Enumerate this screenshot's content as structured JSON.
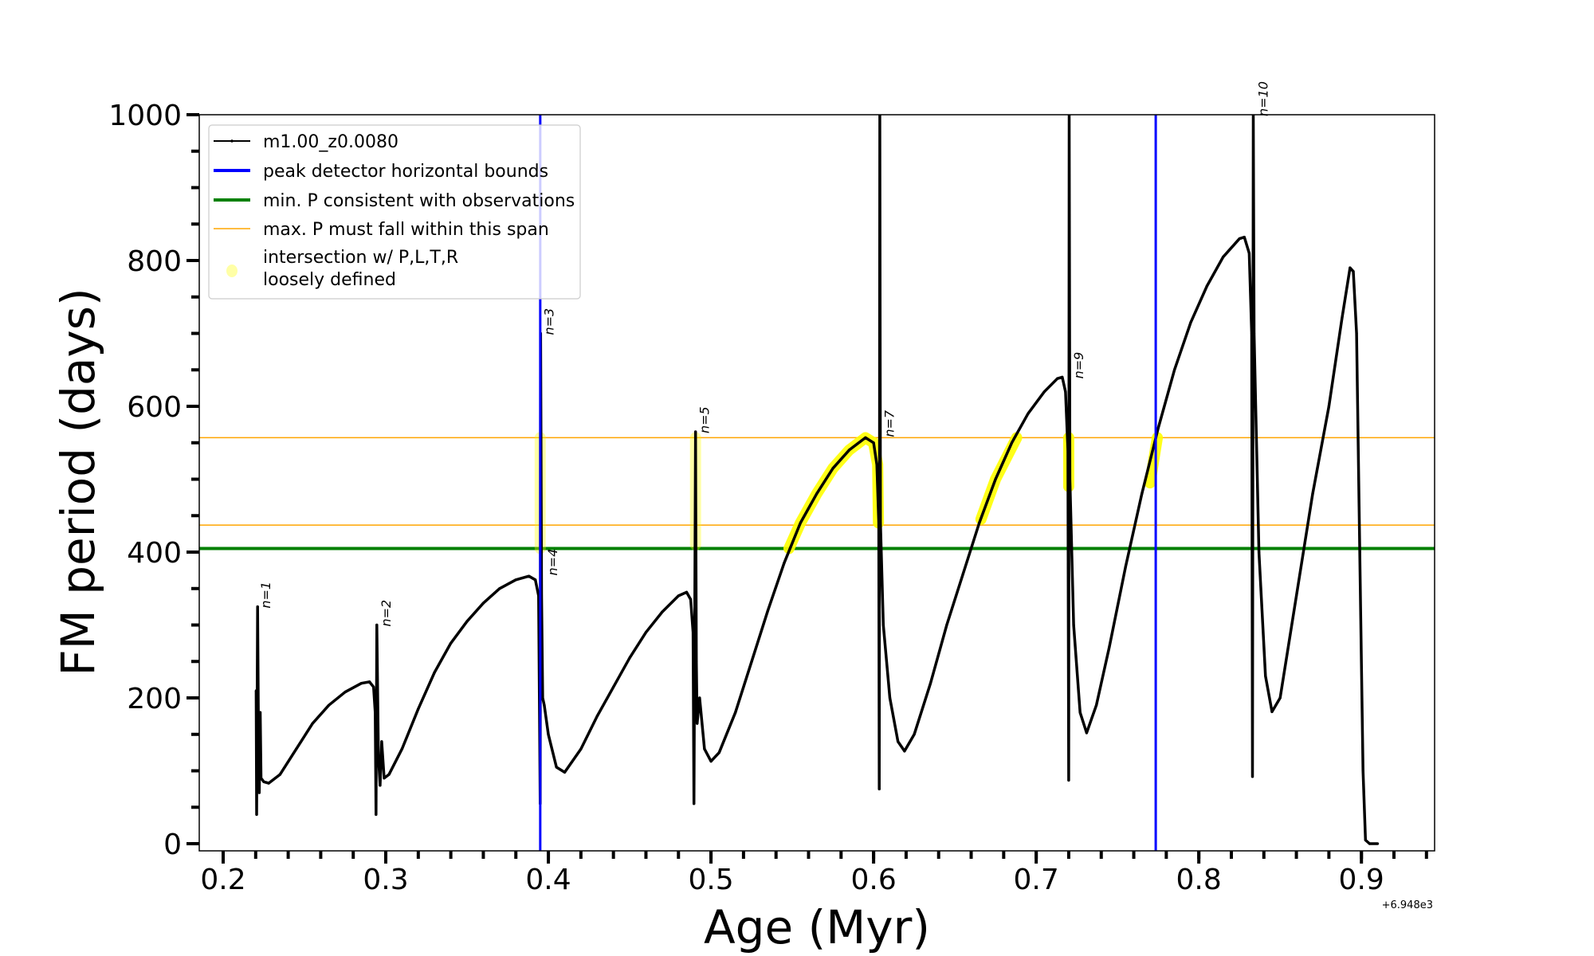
{
  "chart_data": {
    "type": "line",
    "xlabel": "Age (Myr)",
    "ylabel": "FM period (days)",
    "x_offset_label": "+6.948e3",
    "xlim": [
      0.1853,
      0.945
    ],
    "ylim": [
      -9.8,
      1000
    ],
    "xticks": [
      0.2,
      0.3,
      0.4,
      0.5,
      0.6,
      0.7,
      0.8,
      0.9
    ],
    "xtick_labels": [
      "0.2",
      "0.3",
      "0.4",
      "0.5",
      "0.6",
      "0.7",
      "0.8",
      "0.9"
    ],
    "x_minor_step": 0.02,
    "yticks": [
      0,
      200,
      400,
      600,
      800,
      1000
    ],
    "ytick_labels": [
      "0",
      "200",
      "400",
      "600",
      "800",
      "1000"
    ],
    "y_minor_step": 50,
    "grid": false,
    "legend_position": "top-left",
    "legend": [
      {
        "label": "m1.00_z0.0080",
        "color": "#000000",
        "kind": "line-marker"
      },
      {
        "label": "peak detector horizontal bounds",
        "color": "#0000ff",
        "kind": "thick-line"
      },
      {
        "label": "min. P consistent with observations",
        "color": "#008000",
        "kind": "thick-line"
      },
      {
        "label": "max. P must fall within this span",
        "color": "#ffa500",
        "kind": "thin-line"
      },
      {
        "label": "intersection w/ P,L,T,R",
        "label2": "loosely defined",
        "color": "#ffff80",
        "kind": "dot"
      }
    ],
    "series": [
      {
        "name": "m1.00_z0.0080",
        "color": "#000000",
        "points": [
          [
            0.2203,
            210
          ],
          [
            0.2206,
            40
          ],
          [
            0.2212,
            325
          ],
          [
            0.2218,
            120
          ],
          [
            0.2222,
            70
          ],
          [
            0.2228,
            180
          ],
          [
            0.2233,
            90
          ],
          [
            0.225,
            85
          ],
          [
            0.228,
            83
          ],
          [
            0.235,
            95
          ],
          [
            0.245,
            130
          ],
          [
            0.255,
            165
          ],
          [
            0.265,
            190
          ],
          [
            0.275,
            208
          ],
          [
            0.285,
            220
          ],
          [
            0.29,
            222
          ],
          [
            0.2925,
            215
          ],
          [
            0.2935,
            180
          ],
          [
            0.294,
            40
          ],
          [
            0.2945,
            300
          ],
          [
            0.2955,
            120
          ],
          [
            0.2965,
            80
          ],
          [
            0.2975,
            140
          ],
          [
            0.299,
            90
          ],
          [
            0.302,
            95
          ],
          [
            0.31,
            130
          ],
          [
            0.32,
            185
          ],
          [
            0.33,
            235
          ],
          [
            0.34,
            275
          ],
          [
            0.35,
            305
          ],
          [
            0.36,
            330
          ],
          [
            0.37,
            350
          ],
          [
            0.38,
            362
          ],
          [
            0.388,
            367
          ],
          [
            0.392,
            362
          ],
          [
            0.394,
            340
          ],
          [
            0.395,
            55
          ],
          [
            0.3952,
            700
          ],
          [
            0.3958,
            340
          ],
          [
            0.3965,
            200
          ],
          [
            0.3975,
            190
          ],
          [
            0.4,
            150
          ],
          [
            0.405,
            105
          ],
          [
            0.41,
            98
          ],
          [
            0.42,
            130
          ],
          [
            0.43,
            175
          ],
          [
            0.44,
            215
          ],
          [
            0.45,
            255
          ],
          [
            0.46,
            290
          ],
          [
            0.47,
            318
          ],
          [
            0.48,
            340
          ],
          [
            0.485,
            345
          ],
          [
            0.4875,
            335
          ],
          [
            0.489,
            290
          ],
          [
            0.4895,
            55
          ],
          [
            0.4905,
            565
          ],
          [
            0.491,
            250
          ],
          [
            0.4915,
            165
          ],
          [
            0.493,
            200
          ],
          [
            0.496,
            130
          ],
          [
            0.5,
            113
          ],
          [
            0.505,
            125
          ],
          [
            0.515,
            180
          ],
          [
            0.525,
            250
          ],
          [
            0.535,
            320
          ],
          [
            0.545,
            385
          ],
          [
            0.555,
            440
          ],
          [
            0.565,
            480
          ],
          [
            0.575,
            515
          ],
          [
            0.585,
            540
          ],
          [
            0.595,
            557
          ],
          [
            0.6,
            550
          ],
          [
            0.602,
            520
          ],
          [
            0.6032,
            440
          ],
          [
            0.6035,
            75
          ],
          [
            0.6038,
            1000
          ],
          [
            0.6042,
            440
          ],
          [
            0.606,
            300
          ],
          [
            0.61,
            200
          ],
          [
            0.615,
            140
          ],
          [
            0.619,
            127
          ],
          [
            0.625,
            150
          ],
          [
            0.635,
            220
          ],
          [
            0.645,
            300
          ],
          [
            0.655,
            370
          ],
          [
            0.665,
            440
          ],
          [
            0.675,
            500
          ],
          [
            0.685,
            550
          ],
          [
            0.695,
            590
          ],
          [
            0.705,
            620
          ],
          [
            0.713,
            638
          ],
          [
            0.716,
            640
          ],
          [
            0.718,
            620
          ],
          [
            0.7195,
            540
          ],
          [
            0.72,
            87
          ],
          [
            0.7203,
            1000
          ],
          [
            0.7207,
            500
          ],
          [
            0.723,
            300
          ],
          [
            0.727,
            180
          ],
          [
            0.731,
            152
          ],
          [
            0.737,
            190
          ],
          [
            0.745,
            270
          ],
          [
            0.755,
            380
          ],
          [
            0.765,
            480
          ],
          [
            0.775,
            570
          ],
          [
            0.785,
            650
          ],
          [
            0.795,
            715
          ],
          [
            0.805,
            765
          ],
          [
            0.815,
            805
          ],
          [
            0.825,
            830
          ],
          [
            0.828,
            832
          ],
          [
            0.831,
            810
          ],
          [
            0.8325,
            700
          ],
          [
            0.833,
            92
          ],
          [
            0.8335,
            1000
          ],
          [
            0.834,
            700
          ],
          [
            0.837,
            400
          ],
          [
            0.841,
            230
          ],
          [
            0.845,
            181
          ],
          [
            0.85,
            200
          ],
          [
            0.86,
            340
          ],
          [
            0.87,
            480
          ],
          [
            0.88,
            600
          ],
          [
            0.888,
            720
          ],
          [
            0.893,
            790
          ],
          [
            0.895,
            785
          ],
          [
            0.897,
            700
          ],
          [
            0.899,
            400
          ],
          [
            0.901,
            100
          ],
          [
            0.9025,
            5
          ],
          [
            0.905,
            0
          ],
          [
            0.91,
            0
          ]
        ]
      }
    ],
    "vertical_lines": [
      {
        "name": "peak-detector-bound-left",
        "x": 0.395,
        "color": "#0000ff"
      },
      {
        "name": "peak-detector-bound-right",
        "x": 0.7735,
        "color": "#0000ff"
      }
    ],
    "horizontal_lines": [
      {
        "name": "min-period-line",
        "y": 405,
        "color": "#008000",
        "width": 4
      },
      {
        "name": "max-period-upper-line",
        "y": 557,
        "color": "#ffa500",
        "width": 1.5
      },
      {
        "name": "max-period-lower-line",
        "y": 437,
        "color": "#ffa500",
        "width": 1.5
      }
    ],
    "intersections": [
      {
        "opacity": 0.35,
        "points": [
          [
            0.395,
            405
          ],
          [
            0.395,
            557
          ]
        ]
      },
      {
        "opacity": 0.35,
        "points": [
          [
            0.4905,
            410
          ],
          [
            0.4905,
            557
          ]
        ]
      },
      {
        "opacity": 0.9,
        "points": [
          [
            0.548,
            405
          ],
          [
            0.555,
            440
          ],
          [
            0.565,
            480
          ],
          [
            0.575,
            515
          ],
          [
            0.585,
            540
          ],
          [
            0.595,
            557
          ],
          [
            0.6,
            550
          ],
          [
            0.6025,
            520
          ],
          [
            0.603,
            440
          ]
        ]
      },
      {
        "opacity": 0.9,
        "points": [
          [
            0.666,
            445
          ],
          [
            0.675,
            500
          ],
          [
            0.688,
            557
          ]
        ]
      },
      {
        "opacity": 0.9,
        "points": [
          [
            0.72,
            490
          ],
          [
            0.72,
            557
          ]
        ]
      },
      {
        "opacity": 0.9,
        "points": [
          [
            0.77,
            495
          ],
          [
            0.7745,
            557
          ]
        ]
      }
    ],
    "annotations": [
      {
        "text": "n=1",
        "x": 0.2215,
        "y": 325
      },
      {
        "text": "n=2",
        "x": 0.2955,
        "y": 300
      },
      {
        "text": "n=3",
        "x": 0.3958,
        "y": 700
      },
      {
        "text": "n=4",
        "x": 0.398,
        "y": 370
      },
      {
        "text": "n=5",
        "x": 0.4915,
        "y": 565
      },
      {
        "text": "n=7",
        "x": 0.605,
        "y": 560
      },
      {
        "text": "n=9",
        "x": 0.7215,
        "y": 640
      },
      {
        "text": "n=10",
        "x": 0.835,
        "y": 1000
      }
    ]
  }
}
